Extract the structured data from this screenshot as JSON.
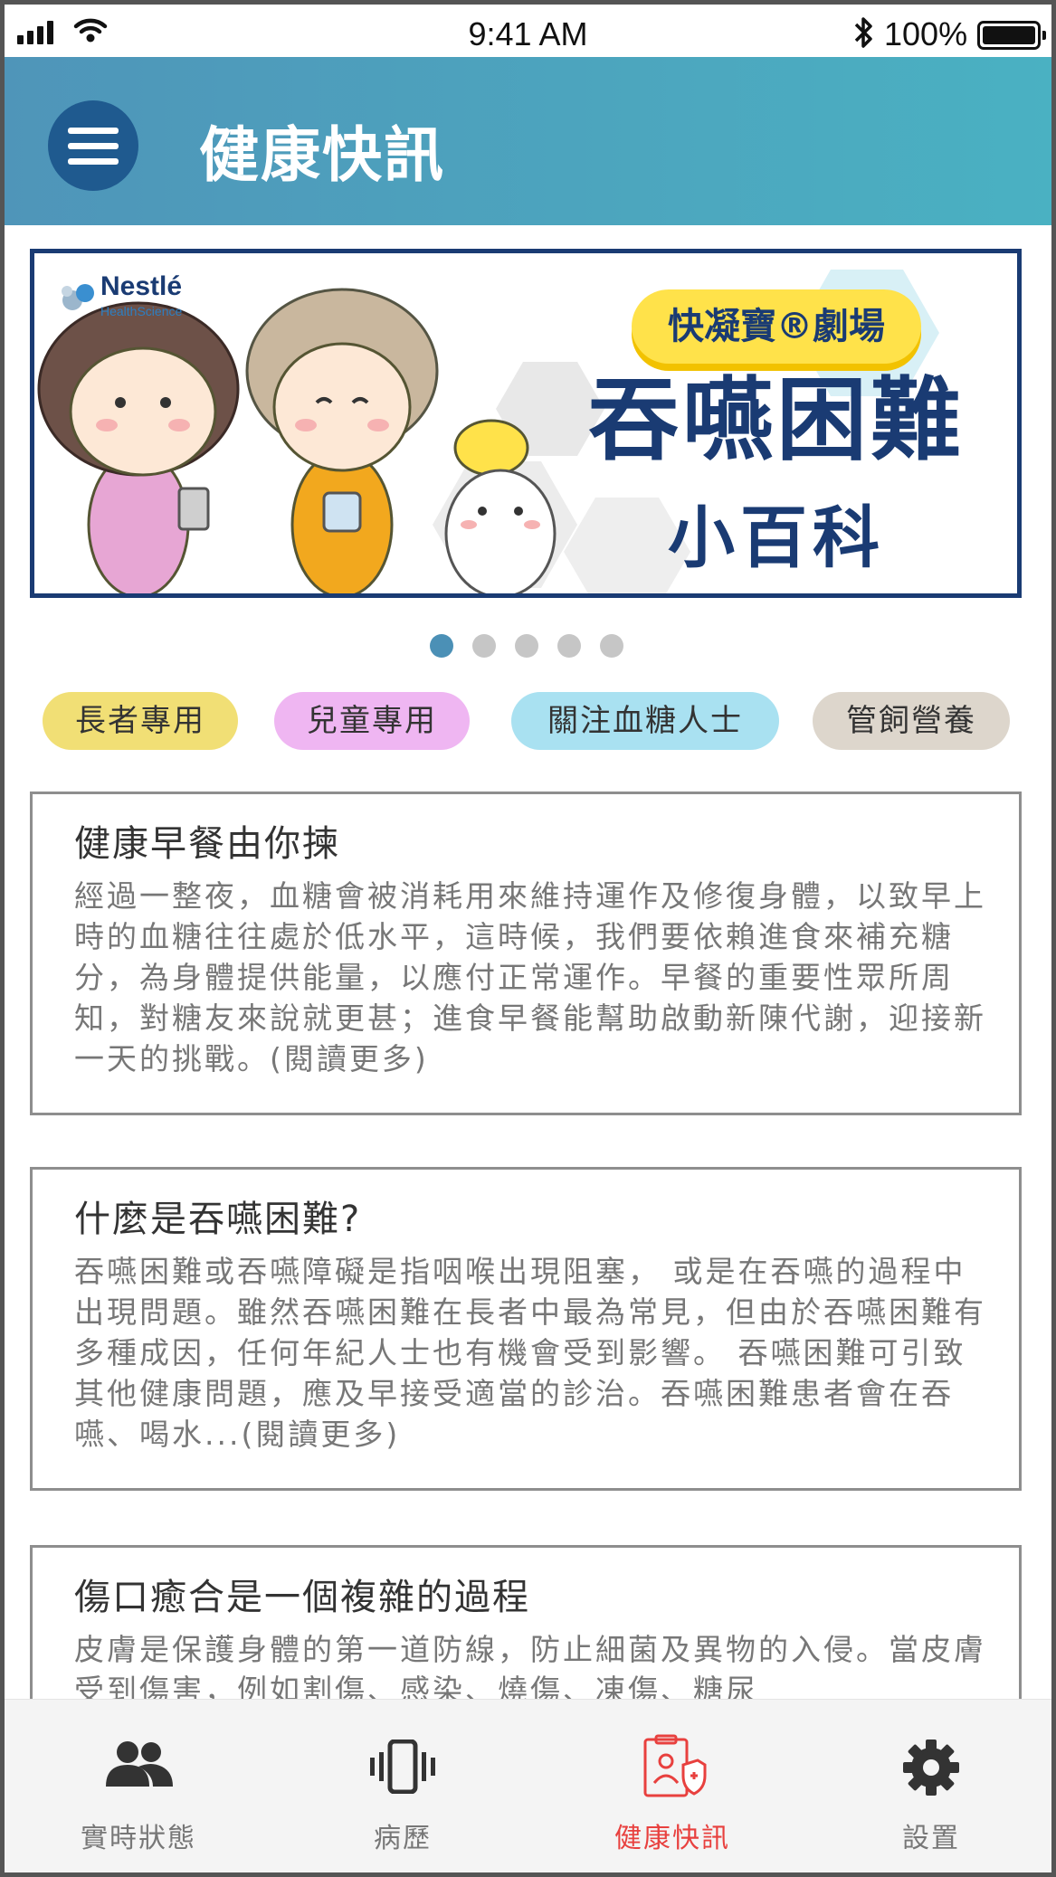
{
  "status_bar": {
    "time": "9:41 AM",
    "battery": "100%"
  },
  "header": {
    "title": "健康快訊",
    "menu_icon": "hamburger-menu-icon"
  },
  "banner": {
    "brand": "Nestlé",
    "brand_sub": "HealthScience",
    "badge": "快凝寶®劇場",
    "title": "吞嚥困難",
    "subtitle": "小百科"
  },
  "carousel": {
    "count": 5,
    "active": 0
  },
  "categories": [
    {
      "label": "長者專用",
      "color": "#f1df75"
    },
    {
      "label": "兒童專用",
      "color": "#efb6f2"
    },
    {
      "label": "關注血糖人士",
      "color": "#a9e1f1"
    },
    {
      "label": "管飼營養",
      "color": "#ddd6cc"
    }
  ],
  "articles": [
    {
      "title": "健康早餐由你揀",
      "body": "經過一整夜，血糖會被消耗用來維持運作及修復身體，以致早上時的血糖往往處於低水平，這時候，我們要依賴進食來補充糖分，為身體提供能量，以應付正常運作。早餐的重要性眾所周知，對糖友來說就更甚；進食早餐能幫助啟動新陳代謝，迎接新一天的挑戰。",
      "more": "(閱讀更多)"
    },
    {
      "title": "什麼是吞嚥困難?",
      "body": "吞嚥困難或吞嚥障礙是指咽喉出現阻塞， 或是在吞嚥的過程中出現問題。雖然吞嚥困難在長者中最為常見，但由於吞嚥困難有多種成因，任何年紀人士也有機會受到影響。 吞嚥困難可引致其他健康問題，應及早接受適當的診治。吞嚥困難患者會在吞嚥、喝水...",
      "more": "(閱讀更多)"
    },
    {
      "title": "傷口癒合是一個複雜的過程",
      "body": "皮膚是保護身體的第一道防線，防止細菌及異物的入侵。當皮膚受到傷害，例如割傷、感染、燒傷、凍傷、糖尿",
      "more": ""
    }
  ],
  "bottom_nav": [
    {
      "label": "實時狀態",
      "icon": "people-icon"
    },
    {
      "label": "病歷",
      "icon": "vibrate-phone-icon"
    },
    {
      "label": "健康快訊",
      "icon": "health-document-icon"
    },
    {
      "label": "設置",
      "icon": "gear-icon"
    }
  ],
  "colors": {
    "accent": "#e8403e",
    "header_start": "#4f95b9",
    "header_end": "#4ab1c2",
    "menu_button": "#1f5a8f"
  }
}
